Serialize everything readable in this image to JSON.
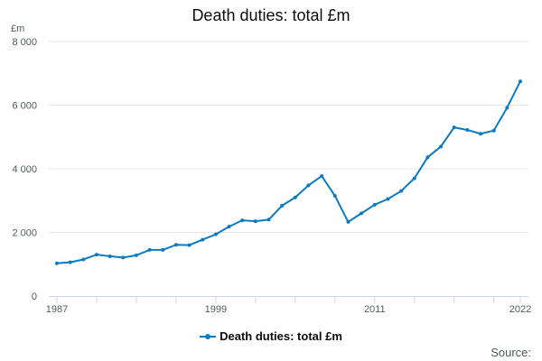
{
  "chart_data": {
    "type": "line",
    "title": "Death duties: total £m",
    "ylabel": "£m",
    "xlabel": "",
    "x": [
      1987,
      1988,
      1989,
      1990,
      1991,
      1992,
      1993,
      1994,
      1995,
      1996,
      1997,
      1998,
      1999,
      2000,
      2001,
      2002,
      2003,
      2004,
      2005,
      2006,
      2007,
      2008,
      2009,
      2010,
      2011,
      2012,
      2013,
      2014,
      2015,
      2016,
      2017,
      2018,
      2019,
      2020,
      2021,
      2022
    ],
    "x_tick_labels": [
      "1987",
      "1999",
      "2011",
      "2022"
    ],
    "xlim": [
      1987,
      2022
    ],
    "ylim": [
      0,
      8000
    ],
    "y_ticks": [
      0,
      2000,
      4000,
      6000,
      8000
    ],
    "y_tick_labels": [
      "0",
      "2 000",
      "4 000",
      "6 000",
      "8 000"
    ],
    "grid": true,
    "legend_position": "bottom",
    "series": [
      {
        "name": "Death duties: total £m",
        "color": "#0b7abf",
        "values": [
          1030,
          1060,
          1150,
          1300,
          1250,
          1210,
          1280,
          1450,
          1450,
          1610,
          1600,
          1770,
          1940,
          2180,
          2380,
          2350,
          2400,
          2840,
          3100,
          3480,
          3770,
          3150,
          2330,
          2600,
          2870,
          3050,
          3300,
          3700,
          4360,
          4700,
          5300,
          5220,
          5100,
          5200,
          5920,
          6750
        ]
      }
    ]
  },
  "footer": {
    "source_label": "Source:"
  }
}
